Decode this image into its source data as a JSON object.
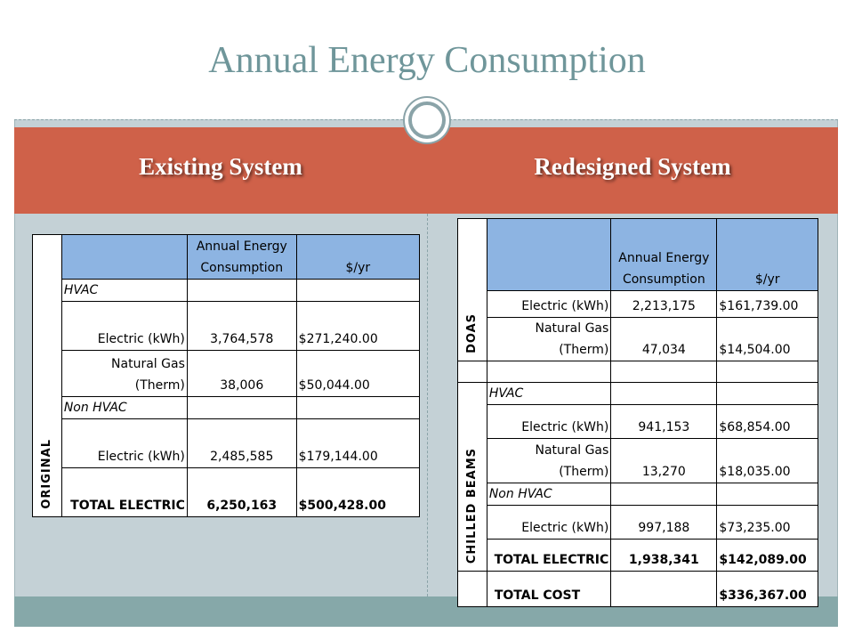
{
  "slide": {
    "title": "Annual Energy Consumption",
    "left_heading": "Existing System",
    "right_heading": "Redesigned System"
  },
  "colors": {
    "title_text": "#6f969a",
    "band": "#cf6149",
    "table_header": "#8db4e2",
    "background": "#c4d1d6",
    "bottom_bar": "#86a8a9"
  },
  "original_table": {
    "section_label": "ORIGINAL",
    "header": {
      "label": "",
      "consumption": "Annual Energy Consumption",
      "cost": "$/yr"
    },
    "hvac_label": "HVAC",
    "rows": [
      {
        "label": "Electric (kWh)",
        "consumption": "3,764,578",
        "cost": "$271,240.00"
      },
      {
        "label": "Natural Gas (Therm)",
        "consumption": "38,006",
        "cost": "$50,044.00"
      }
    ],
    "non_hvac_label": "Non HVAC",
    "non_hvac_row": {
      "label": "Electric (kWh)",
      "consumption": "2,485,585",
      "cost": "$179,144.00"
    },
    "total": {
      "label": "TOTAL ELECTRIC",
      "consumption": "6,250,163",
      "cost": "$500,428.00"
    }
  },
  "redesign_table": {
    "doas_label": "DOAS",
    "beams_label": "CHILLED BEAMS",
    "header": {
      "label": "",
      "consumption": "Annual Energy Consumption",
      "cost": "$/yr"
    },
    "doas_rows": [
      {
        "label": "Electric (kWh)",
        "consumption": "2,213,175",
        "cost": "$161,739.00"
      },
      {
        "label": "Natural Gas (Therm)",
        "consumption": "47,034",
        "cost": "$14,504.00"
      }
    ],
    "hvac_label": "HVAC",
    "beam_rows": [
      {
        "label": "Electric (kWh)",
        "consumption": "941,153",
        "cost": "$68,854.00"
      },
      {
        "label": "Natural Gas (Therm)",
        "consumption": "13,270",
        "cost": "$18,035.00"
      }
    ],
    "non_hvac_label": "Non HVAC",
    "non_hvac_row": {
      "label": "Electric (kWh)",
      "consumption": "997,188",
      "cost": "$73,235.00"
    },
    "total_electric": {
      "label": "TOTAL ELECTRIC",
      "consumption": "1,938,341",
      "cost": "$142,089.00"
    },
    "total_cost": {
      "label": "TOTAL COST",
      "consumption": "",
      "cost": "$336,367.00"
    }
  }
}
